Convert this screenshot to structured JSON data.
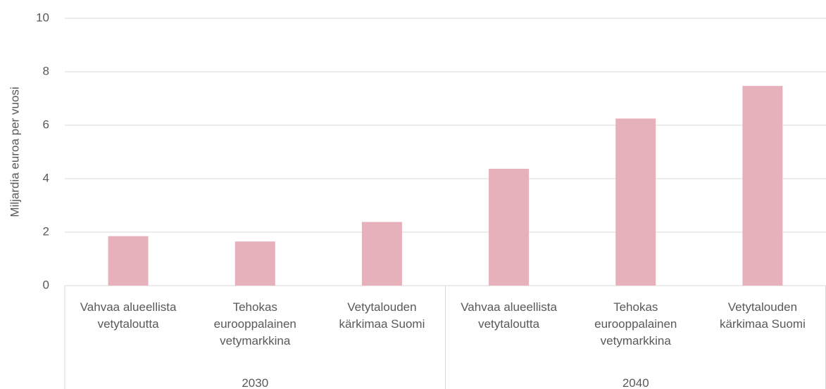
{
  "chart_data": {
    "type": "bar",
    "y_label": "Miljardia euroa per vuosi",
    "categories": [
      "Vahvaa alueellista vetytaloutta",
      "Tehokas eurooppalainen vetymarkkina",
      "Vetytalouden kärkimaa Suomi",
      "Vahvaa alueellista vetytaloutta",
      "Tehokas eurooppalainen vetymarkkina",
      "Vetytalouden kärkimaa Suomi"
    ],
    "groups": [
      "2030",
      "2040"
    ],
    "values": [
      1.85,
      1.65,
      2.38,
      4.37,
      6.25,
      7.47
    ],
    "color": "#e6b1bb",
    "ylim": [
      0,
      10
    ],
    "yticks": [
      0,
      2,
      4,
      6,
      8,
      10
    ],
    "grid": true
  }
}
